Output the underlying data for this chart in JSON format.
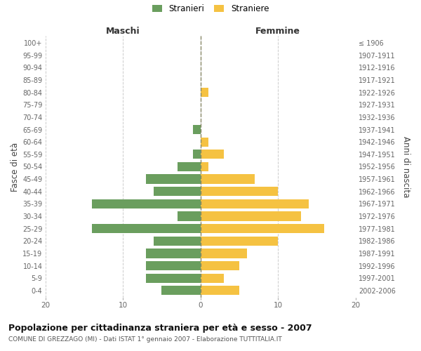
{
  "age_groups_bottom_to_top": [
    "0-4",
    "5-9",
    "10-14",
    "15-19",
    "20-24",
    "25-29",
    "30-34",
    "35-39",
    "40-44",
    "45-49",
    "50-54",
    "55-59",
    "60-64",
    "65-69",
    "70-74",
    "75-79",
    "80-84",
    "85-89",
    "90-94",
    "95-99",
    "100+"
  ],
  "birth_years_bottom_to_top": [
    "2002-2006",
    "1997-2001",
    "1992-1996",
    "1987-1991",
    "1982-1986",
    "1977-1981",
    "1972-1976",
    "1967-1971",
    "1962-1966",
    "1957-1961",
    "1952-1956",
    "1947-1951",
    "1942-1946",
    "1937-1941",
    "1932-1936",
    "1927-1931",
    "1922-1926",
    "1917-1921",
    "1912-1916",
    "1907-1911",
    "≤ 1906"
  ],
  "maschi_bottom_to_top": [
    5,
    7,
    7,
    7,
    6,
    14,
    3,
    14,
    6,
    7,
    3,
    1,
    0,
    1,
    0,
    0,
    0,
    0,
    0,
    0,
    0
  ],
  "femmine_bottom_to_top": [
    5,
    3,
    5,
    6,
    10,
    16,
    13,
    14,
    10,
    7,
    1,
    3,
    1,
    0,
    0,
    0,
    1,
    0,
    0,
    0,
    0
  ],
  "male_color": "#6a9e5e",
  "female_color": "#f5c242",
  "background_color": "#ffffff",
  "grid_color": "#cccccc",
  "title": "Popolazione per cittadinanza straniera per età e sesso - 2007",
  "subtitle": "COMUNE DI GREZZAGO (MI) - Dati ISTAT 1° gennaio 2007 - Elaborazione TUTTITALIA.IT",
  "ylabel_left": "Fasce di età",
  "ylabel_right": "Anni di nascita",
  "xlabel_left": "Maschi",
  "xlabel_right": "Femmine",
  "legend_stranieri": "Stranieri",
  "legend_straniere": "Straniere",
  "xlim": 20,
  "bar_height": 0.75
}
